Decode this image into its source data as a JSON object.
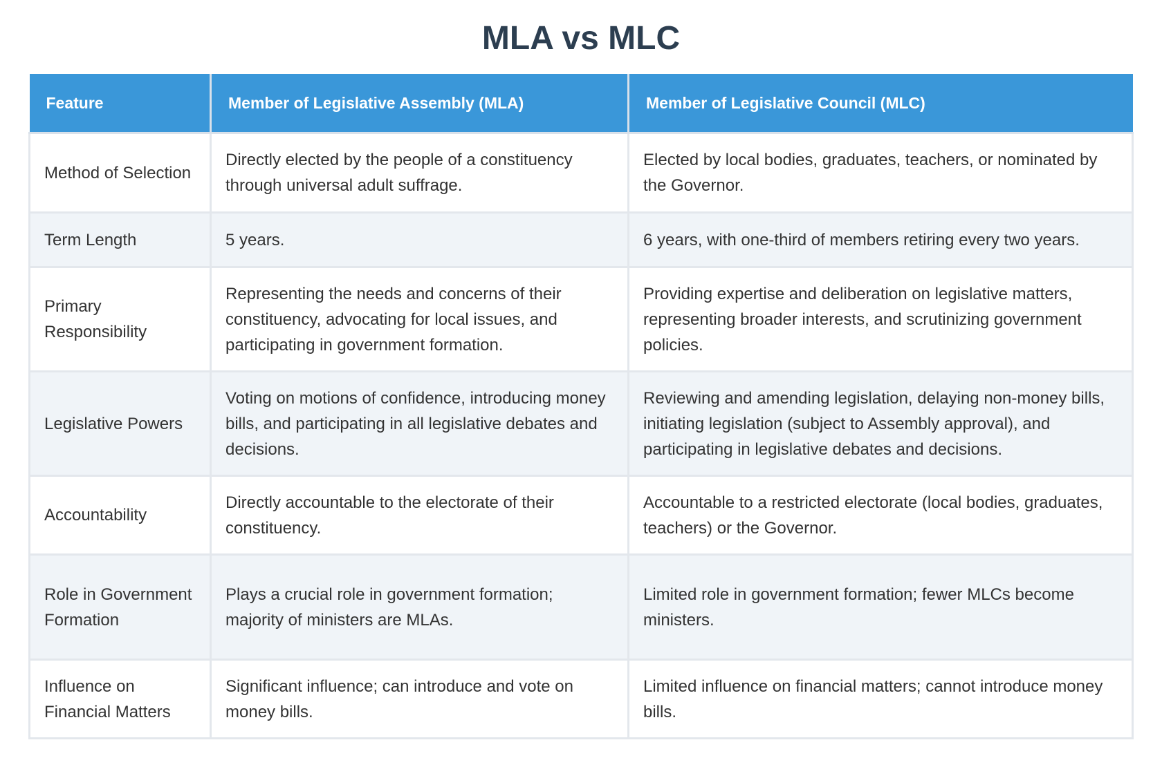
{
  "title": "MLA vs MLC",
  "table": {
    "header": [
      "Feature",
      "Member of Legislative Assembly (MLA)",
      "Member of Legislative Council (MLC)"
    ],
    "rows": [
      [
        "Method of Selection",
        "Directly elected by the people of a constituency through universal adult suffrage.",
        "Elected by local bodies, graduates, teachers, or nominated by the Governor."
      ],
      [
        "Term Length",
        "5 years.",
        "6 years, with one-third of members retiring every two years."
      ],
      [
        "Primary Responsibility",
        "Representing the needs and concerns of their constituency, advocating for local issues, and participating in government formation.",
        "Providing expertise and deliberation on legislative matters, representing broader interests, and scrutinizing government policies."
      ],
      [
        "Legislative Powers",
        "Voting on motions of confidence, introducing money bills, and participating in all legislative debates and decisions.",
        "Reviewing and amending legislation, delaying non-money bills, initiating legislation (subject to Assembly approval), and participating in legislative debates and decisions."
      ],
      [
        "Accountability",
        "Directly accountable to the electorate of their constituency.",
        "Accountable to a restricted electorate (local bodies, graduates, teachers) or the Governor."
      ],
      [
        "Role in Government Formation",
        "Plays a crucial role in government formation; majority of ministers are MLAs.",
        "Limited role in government formation; fewer MLCs become ministers."
      ],
      [
        "Influence on Financial Matters",
        "Significant influence; can introduce and vote on money bills.",
        "Limited influence on financial matters; cannot introduce money bills."
      ]
    ]
  }
}
